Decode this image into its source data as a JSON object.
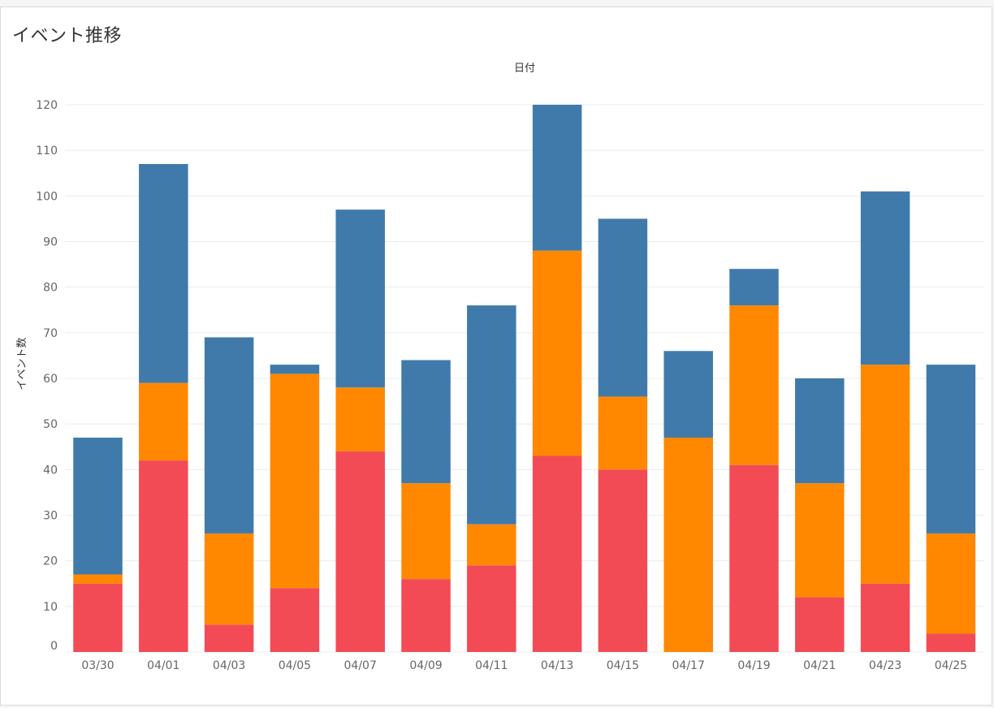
{
  "chart_data": {
    "type": "bar",
    "stacked": true,
    "title": "イベント推移",
    "top_label": "日付",
    "ylabel": "イベント数",
    "xlabel": "",
    "ylim": [
      0,
      120
    ],
    "yticks": [
      0,
      10,
      20,
      30,
      40,
      50,
      60,
      70,
      80,
      90,
      100,
      110,
      120
    ],
    "grid": true,
    "categories": [
      "03/30",
      "04/01",
      "04/03",
      "04/05",
      "04/07",
      "04/09",
      "04/11",
      "04/13",
      "04/15",
      "04/17",
      "04/19",
      "04/21",
      "04/23",
      "04/25"
    ],
    "series": [
      {
        "name": "red",
        "color": "#f24b56",
        "values": [
          15,
          42,
          6,
          14,
          44,
          16,
          19,
          43,
          40,
          0,
          41,
          12,
          15,
          4
        ]
      },
      {
        "name": "orange",
        "color": "#ff8800",
        "values": [
          2,
          17,
          20,
          47,
          14,
          21,
          9,
          45,
          16,
          47,
          35,
          25,
          48,
          22
        ]
      },
      {
        "name": "blue",
        "color": "#407aab",
        "values": [
          30,
          48,
          43,
          2,
          39,
          27,
          48,
          32,
          39,
          19,
          8,
          23,
          38,
          37
        ]
      }
    ]
  }
}
